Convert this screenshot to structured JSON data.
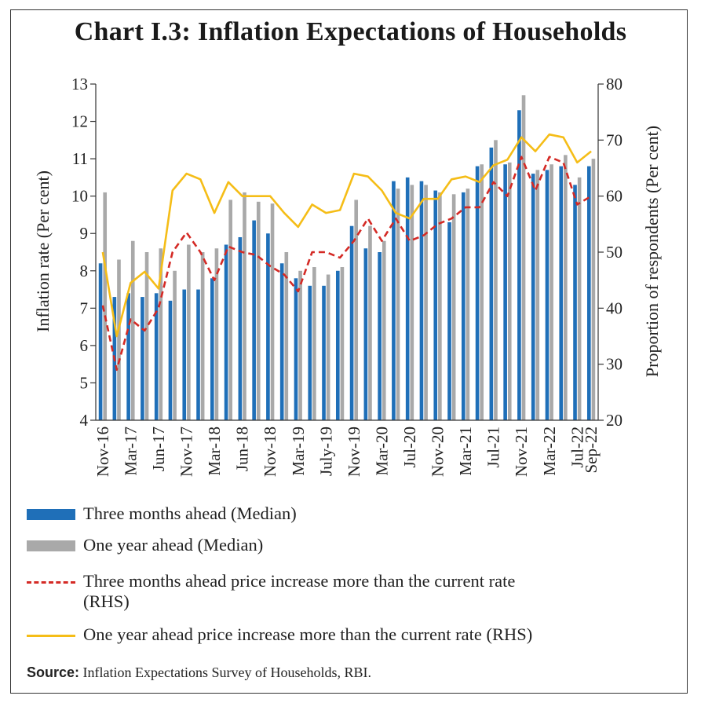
{
  "title": "Chart I.3: Inflation Expectations of Households",
  "colors": {
    "three_month_bar": "#1f6fb8",
    "one_year_bar": "#a9a9a9",
    "three_month_line": "#d42a25",
    "one_year_line": "#f5bd17"
  },
  "legend": {
    "items": [
      {
        "label": "Three months ahead (Median)",
        "icon": "blue-bar-swatch"
      },
      {
        "label": "One year ahead (Median)",
        "icon": "grey-bar-swatch"
      },
      {
        "label": "Three months ahead price increase more than the current rate",
        "label2": "(RHS)",
        "icon": "red-dashed-line-swatch"
      },
      {
        "label": "One year ahead price increase more than the current rate (RHS)",
        "icon": "yellow-line-swatch"
      }
    ]
  },
  "source": {
    "label": "Source:",
    "text": "Inflation Expectations Survey of Households, RBI."
  },
  "chart_data": {
    "type": "bar",
    "title": "Chart I.3: Inflation Expectations of Households",
    "ylabel": "Inflation rate (Per cent)",
    "y2label": "Proportion of respondents (Per cent)",
    "ylim": [
      4,
      13
    ],
    "y2lim": [
      20,
      80
    ],
    "yticks": [
      "4",
      "5",
      "6",
      "7",
      "8",
      "9",
      "10",
      "11",
      "12",
      "13"
    ],
    "y2ticks": [
      "20",
      "30",
      "40",
      "50",
      "60",
      "70",
      "80"
    ],
    "xtick_labels": [
      "Nov-16",
      "Mar-17",
      "Jun-17",
      "Nov-17",
      "Mar-18",
      "Jun-18",
      "Nov-18",
      "Mar-19",
      "July-19",
      "Nov-19",
      "Mar-20",
      "Jul-20",
      "Nov-20",
      "Mar-21",
      "Jul-21",
      "Nov-21",
      "Mar-22",
      "Jul-22",
      "Sep-22"
    ],
    "xtick_index": [
      0,
      2,
      4,
      6,
      8,
      10,
      12,
      14,
      16,
      18,
      20,
      22,
      24,
      26,
      28,
      30,
      32,
      34,
      35
    ],
    "series": [
      {
        "name": "Three months ahead (Median)",
        "kind": "bar",
        "axis": "left",
        "values": [
          8.2,
          7.3,
          7.4,
          7.3,
          7.4,
          7.2,
          7.5,
          7.5,
          7.8,
          8.7,
          8.9,
          9.35,
          9.0,
          8.2,
          7.8,
          7.6,
          7.6,
          8.0,
          9.2,
          8.6,
          8.5,
          10.4,
          10.5,
          10.4,
          10.15,
          9.3,
          10.1,
          10.8,
          11.3,
          10.85,
          12.3,
          10.6,
          10.7,
          10.8,
          10.3,
          10.8
        ]
      },
      {
        "name": "One year ahead (Median)",
        "kind": "bar",
        "axis": "left",
        "values": [
          10.1,
          8.3,
          8.8,
          8.5,
          8.6,
          8.0,
          8.7,
          8.5,
          8.6,
          9.9,
          10.1,
          9.85,
          9.8,
          8.5,
          8.0,
          8.1,
          7.9,
          8.1,
          9.9,
          9.2,
          8.8,
          10.2,
          10.3,
          10.3,
          10.1,
          10.05,
          10.2,
          10.85,
          11.5,
          10.9,
          12.7,
          10.7,
          10.85,
          11.1,
          10.5,
          11.0
        ]
      },
      {
        "name": "Three months ahead price increase more than the current rate (RHS)",
        "kind": "line",
        "style": "dashed",
        "axis": "right",
        "values": [
          40.5,
          29.0,
          38.0,
          36.0,
          40.0,
          50.0,
          53.5,
          50.0,
          45.0,
          51.0,
          50.0,
          49.5,
          47.5,
          46.0,
          43.0,
          50.0,
          50.0,
          49.0,
          52.0,
          56.0,
          52.0,
          56.0,
          52.0,
          53.0,
          55.0,
          56.0,
          58.0,
          58.0,
          62.5,
          60.0,
          67.0,
          61.0,
          67.0,
          66.0,
          58.5,
          60.0
        ]
      },
      {
        "name": "One year ahead price increase more than the current rate (RHS)",
        "kind": "line",
        "style": "solid",
        "axis": "right",
        "values": [
          50.0,
          35.0,
          44.5,
          46.5,
          43.5,
          61.0,
          64.0,
          63.0,
          57.0,
          62.5,
          60.0,
          60.0,
          60.0,
          57.0,
          54.5,
          58.5,
          57.0,
          57.5,
          64.0,
          63.5,
          61.0,
          57.0,
          56.0,
          59.5,
          59.5,
          63.0,
          63.5,
          62.5,
          65.5,
          66.5,
          70.5,
          68.0,
          71.0,
          70.5,
          66.0,
          68.0
        ]
      }
    ]
  }
}
